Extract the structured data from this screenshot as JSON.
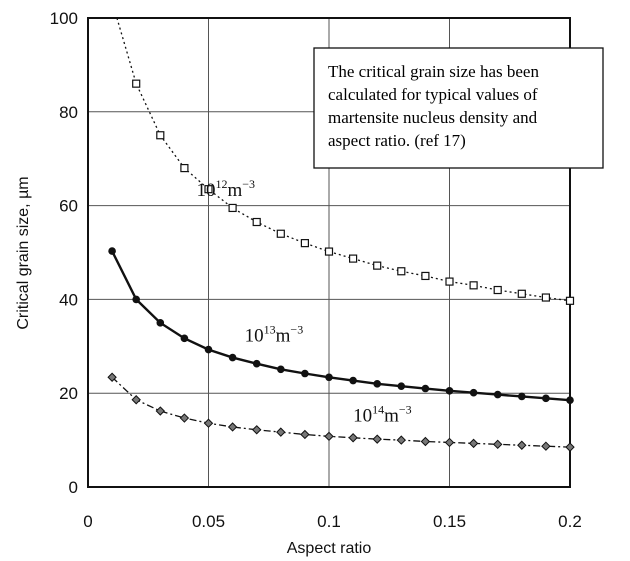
{
  "chart_data": {
    "type": "line",
    "title": "",
    "xlabel": "Aspect ratio",
    "ylabel": "Critical grain size, µm",
    "xlim": [
      0,
      0.2
    ],
    "ylim": [
      0,
      100
    ],
    "xticks": [
      0,
      0.05,
      0.1,
      0.15,
      0.2
    ],
    "yticks": [
      0,
      20,
      40,
      60,
      80,
      100
    ],
    "xtick_labels": [
      "0",
      "0.05",
      "0.1",
      "0.15",
      "0.2"
    ],
    "ytick_labels": [
      "0",
      "20",
      "40",
      "60",
      "80",
      "100"
    ],
    "grid": true,
    "annotation": [
      "The critical grain size has been",
      "calculated for typical values of",
      "martensite nucleus density and",
      "aspect ratio. (ref 17)"
    ],
    "series": [
      {
        "name": "10^12 m^-3",
        "label_base": "10",
        "label_exp": "12",
        "label_unit": "m",
        "label_unit_exp": "−3",
        "label_pos": [
          0.045,
          62
        ],
        "style": "dotted",
        "marker": "square",
        "x": [
          0.02,
          0.03,
          0.04,
          0.05,
          0.06,
          0.07,
          0.08,
          0.09,
          0.1,
          0.11,
          0.12,
          0.13,
          0.14,
          0.15,
          0.16,
          0.17,
          0.18,
          0.19,
          0.2
        ],
        "y": [
          86,
          75,
          68,
          63.5,
          59.5,
          56.5,
          54,
          52,
          50.2,
          48.7,
          47.2,
          46,
          45,
          43.8,
          43,
          42,
          41.2,
          40.4,
          39.7
        ]
      },
      {
        "name": "10^13 m^-3",
        "label_base": "10",
        "label_exp": "13",
        "label_unit": "m",
        "label_unit_exp": "−3",
        "label_pos": [
          0.065,
          31
        ],
        "style": "solid",
        "marker": "dot",
        "x": [
          0.01,
          0.02,
          0.03,
          0.04,
          0.05,
          0.06,
          0.07,
          0.08,
          0.09,
          0.1,
          0.11,
          0.12,
          0.13,
          0.14,
          0.15,
          0.16,
          0.17,
          0.18,
          0.19,
          0.2
        ],
        "y": [
          50.3,
          40,
          35,
          31.7,
          29.3,
          27.6,
          26.3,
          25.1,
          24.2,
          23.4,
          22.7,
          22,
          21.5,
          21,
          20.5,
          20.1,
          19.7,
          19.3,
          18.9,
          18.5
        ]
      },
      {
        "name": "10^14 m^-3",
        "label_base": "10",
        "label_exp": "14",
        "label_unit": "m",
        "label_unit_exp": "−3",
        "label_pos": [
          0.11,
          14
        ],
        "style": "dashdot",
        "marker": "diamond",
        "x": [
          0.01,
          0.02,
          0.03,
          0.04,
          0.05,
          0.06,
          0.07,
          0.08,
          0.09,
          0.1,
          0.11,
          0.12,
          0.13,
          0.14,
          0.15,
          0.16,
          0.17,
          0.18,
          0.19,
          0.2
        ],
        "y": [
          23.4,
          18.6,
          16.2,
          14.7,
          13.6,
          12.8,
          12.2,
          11.7,
          11.2,
          10.8,
          10.5,
          10.2,
          10,
          9.7,
          9.5,
          9.3,
          9.1,
          8.9,
          8.7,
          8.5
        ]
      }
    ],
    "first_series_extension": {
      "x": 0.012,
      "y": 100
    }
  }
}
